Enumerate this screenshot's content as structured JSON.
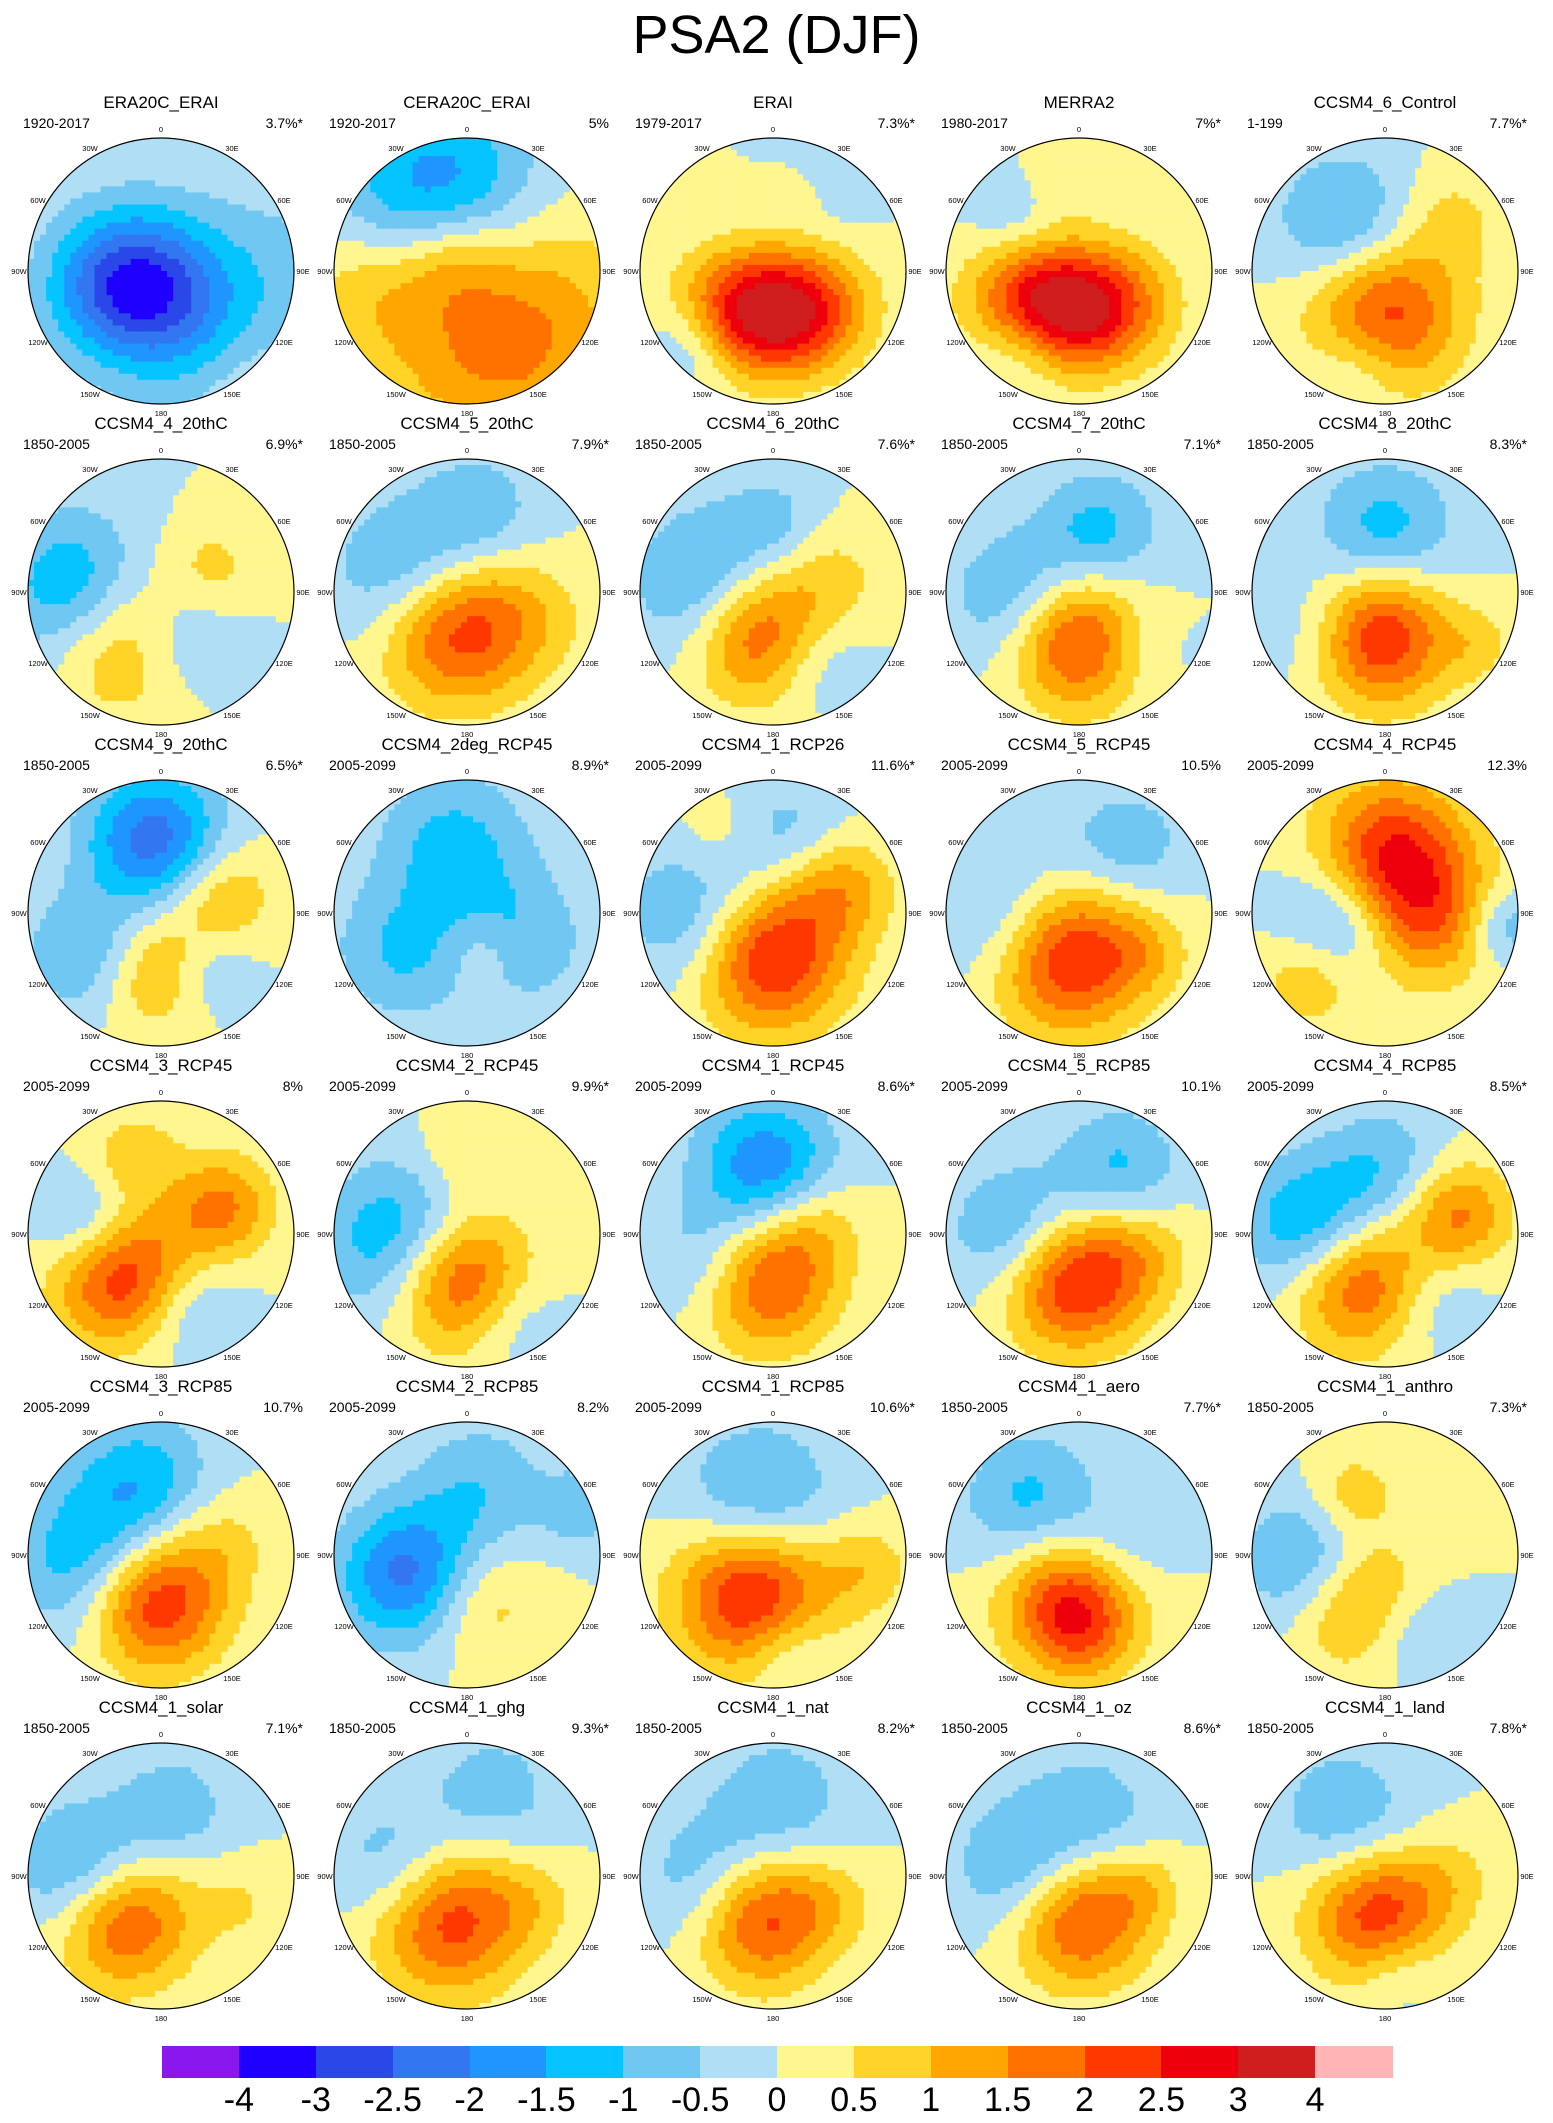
{
  "title": "PSA2 (DJF)",
  "longitude_labels": [
    "0",
    "30E",
    "60E",
    "90E",
    "120E",
    "150E",
    "180",
    "150W",
    "120W",
    "90W",
    "60W",
    "30W"
  ],
  "panels": [
    {
      "name": "ERA20C_ERAI",
      "period": "1920-2017",
      "variance": "3.7%*",
      "pattern": [
        [
          -0.6,
          0.9,
          0.12,
          1.4
        ],
        [
          -2.8,
          -0.25,
          0.12,
          1.0
        ],
        [
          -1.6,
          0.15,
          0.5,
          1.2
        ],
        [
          0.7,
          -0.2,
          0.6,
          0.9
        ],
        [
          0.8,
          0.55,
          0.75,
          1.0
        ]
      ]
    },
    {
      "name": "CERA20C_ERAI",
      "period": "1920-2017",
      "variance": "5%",
      "pattern": [
        [
          -2.1,
          -0.2,
          -0.55,
          1.3
        ],
        [
          1.9,
          0.25,
          0.42,
          1.6
        ],
        [
          0.9,
          -0.1,
          -0.1,
          0.7
        ],
        [
          0.8,
          -0.7,
          0.1,
          0.9
        ]
      ]
    },
    {
      "name": "ERAI",
      "period": "1979-2017",
      "variance": "7.3%*",
      "pattern": [
        [
          2.3,
          0.0,
          0.33,
          0.8
        ],
        [
          1.4,
          -0.35,
          0.28,
          0.8
        ],
        [
          1.4,
          0.35,
          0.28,
          0.8
        ],
        [
          -0.8,
          -0.6,
          0.55,
          0.6
        ],
        [
          -0.6,
          0.4,
          -0.6,
          0.6
        ],
        [
          0.5,
          0.3,
          -0.6,
          0.5
        ]
      ]
    },
    {
      "name": "MERRA2",
      "period": "1980-2017",
      "variance": "7%*",
      "pattern": [
        [
          2.4,
          -0.1,
          0.3,
          0.8
        ],
        [
          1.5,
          -0.45,
          0.2,
          0.8
        ],
        [
          1.5,
          0.3,
          0.25,
          0.8
        ],
        [
          -0.8,
          -0.4,
          0.55,
          0.6
        ],
        [
          0.5,
          -0.1,
          -0.7,
          0.5
        ],
        [
          -0.5,
          -0.5,
          -0.4,
          0.6
        ]
      ]
    },
    {
      "name": "CCSM4_6_Control",
      "period": "1-199",
      "variance": "7.7%*",
      "pattern": [
        [
          2.3,
          0.0,
          0.32,
          1.0
        ],
        [
          -1.3,
          -0.3,
          -0.35,
          0.9
        ],
        [
          -0.7,
          -0.2,
          0.7,
          0.6
        ],
        [
          0.6,
          0.5,
          -0.4,
          0.7
        ]
      ]
    },
    {
      "name": "CCSM4_4_20thC",
      "period": "1850-2005",
      "variance": "6.9%*",
      "pattern": [
        [
          -2.0,
          -0.6,
          0.0,
          1.0
        ],
        [
          2.1,
          -0.25,
          0.3,
          1.0
        ],
        [
          -1.2,
          0.1,
          0.35,
          0.8
        ],
        [
          0.6,
          0.4,
          -0.2,
          0.6
        ]
      ]
    },
    {
      "name": "CCSM4_5_20thC",
      "period": "1850-2005",
      "variance": "7.9%*",
      "pattern": [
        [
          2.7,
          -0.1,
          0.25,
          1.0
        ],
        [
          -1.6,
          -0.4,
          -0.1,
          1.0
        ],
        [
          -0.8,
          0.1,
          -0.6,
          0.8
        ],
        [
          0.5,
          0.5,
          0.2,
          0.8
        ]
      ]
    },
    {
      "name": "CCSM4_6_20thC",
      "period": "1850-2005",
      "variance": "7.6%*",
      "pattern": [
        [
          2.5,
          -0.1,
          0.3,
          0.9
        ],
        [
          -1.5,
          -0.45,
          -0.05,
          1.0
        ],
        [
          -0.8,
          0.3,
          0.5,
          0.7
        ],
        [
          0.6,
          0.45,
          -0.1,
          0.7
        ],
        [
          -0.6,
          0.0,
          -0.55,
          0.6
        ]
      ]
    },
    {
      "name": "CCSM4_7_20thC",
      "period": "1850-2005",
      "variance": "7.1%*",
      "pattern": [
        [
          2.6,
          0.0,
          0.35,
          0.9
        ],
        [
          -1.2,
          -0.45,
          0.05,
          0.9
        ],
        [
          -1.2,
          0.15,
          -0.45,
          0.8
        ],
        [
          -0.6,
          0.4,
          0.4,
          0.7
        ]
      ]
    },
    {
      "name": "CCSM4_8_20thC",
      "period": "1850-2005",
      "variance": "8.3%*",
      "pattern": [
        [
          2.7,
          -0.05,
          0.33,
          0.9
        ],
        [
          -1.3,
          0.0,
          -0.45,
          0.9
        ],
        [
          -0.7,
          -0.5,
          0.3,
          0.8
        ],
        [
          0.6,
          0.7,
          0.4,
          0.5
        ]
      ]
    },
    {
      "name": "CCSM4_9_20thC",
      "period": "1850-2005",
      "variance": "6.5%*",
      "pattern": [
        [
          -2.3,
          -0.05,
          -0.55,
          0.9
        ],
        [
          1.3,
          -0.05,
          0.42,
          0.8
        ],
        [
          -1.2,
          -0.55,
          0.3,
          0.8
        ],
        [
          1.1,
          0.45,
          -0.15,
          0.7
        ],
        [
          -0.7,
          0.35,
          0.45,
          0.6
        ]
      ]
    },
    {
      "name": "CCSM4_2deg_RCP45",
      "period": "2005-2099",
      "variance": "8.9%*",
      "pattern": [
        [
          -1.2,
          -0.1,
          -0.5,
          1.0
        ],
        [
          -1.0,
          -0.5,
          0.3,
          0.9
        ],
        [
          -0.9,
          0.4,
          0.2,
          0.9
        ],
        [
          0.6,
          0.1,
          0.3,
          0.5
        ]
      ]
    },
    {
      "name": "CCSM4_1_RCP26",
      "period": "2005-2099",
      "variance": "11.6%*",
      "pattern": [
        [
          3.0,
          -0.05,
          0.3,
          1.0
        ],
        [
          -1.5,
          -0.5,
          0.05,
          1.0
        ],
        [
          1.2,
          0.5,
          -0.2,
          0.7
        ],
        [
          -0.8,
          0.1,
          -0.55,
          0.8
        ],
        [
          0.5,
          -0.4,
          -0.6,
          0.6
        ]
      ]
    },
    {
      "name": "CCSM4_5_RCP45",
      "period": "2005-2099",
      "variance": "10.5%",
      "pattern": [
        [
          3.0,
          -0.1,
          0.3,
          1.0
        ],
        [
          -1.3,
          -0.45,
          0.05,
          1.0
        ],
        [
          -0.9,
          0.35,
          -0.5,
          0.8
        ],
        [
          0.6,
          0.5,
          0.3,
          0.6
        ]
      ]
    },
    {
      "name": "CCSM4_4_RCP45",
      "period": "2005-2099",
      "variance": "12.3%",
      "pattern": [
        [
          2.4,
          0.05,
          -0.45,
          1.0
        ],
        [
          1.6,
          0.3,
          0.05,
          0.9
        ],
        [
          -1.6,
          -0.35,
          0.1,
          0.8
        ],
        [
          1.2,
          -0.55,
          0.45,
          0.7
        ],
        [
          -1.0,
          0.9,
          0.1,
          0.5
        ]
      ]
    },
    {
      "name": "CCSM4_3_RCP45",
      "period": "2005-2099",
      "variance": "8%",
      "pattern": [
        [
          2.6,
          -0.3,
          0.3,
          0.9
        ],
        [
          1.6,
          0.45,
          -0.2,
          0.7
        ],
        [
          -1.2,
          -0.55,
          -0.05,
          0.7
        ],
        [
          0.8,
          -0.2,
          -0.6,
          0.6
        ],
        [
          -0.8,
          0.2,
          0.55,
          0.7
        ]
      ]
    },
    {
      "name": "CCSM4_2_RCP45",
      "period": "2005-2099",
      "variance": "9.9%*",
      "pattern": [
        [
          2.6,
          -0.05,
          0.35,
          0.9
        ],
        [
          -1.7,
          -0.5,
          0.05,
          1.0
        ],
        [
          -0.8,
          0.3,
          0.6,
          0.7
        ],
        [
          0.6,
          0.0,
          -0.6,
          0.6
        ]
      ]
    },
    {
      "name": "CCSM4_1_RCP45",
      "period": "2005-2099",
      "variance": "8.6%*",
      "pattern": [
        [
          2.2,
          -0.05,
          0.35,
          0.9
        ],
        [
          -2.0,
          -0.05,
          -0.5,
          0.9
        ],
        [
          -0.9,
          -0.5,
          0.2,
          0.8
        ],
        [
          0.8,
          0.3,
          -0.1,
          0.7
        ]
      ]
    },
    {
      "name": "CCSM4_5_RCP85",
      "period": "2005-2099",
      "variance": "10.1%",
      "pattern": [
        [
          2.7,
          -0.05,
          0.35,
          0.9
        ],
        [
          -1.3,
          -0.45,
          0.0,
          0.9
        ],
        [
          -1.1,
          0.3,
          -0.5,
          0.8
        ],
        [
          0.8,
          0.45,
          0.15,
          0.7
        ]
      ]
    },
    {
      "name": "CCSM4_4_RCP85",
      "period": "2005-2099",
      "variance": "8.5%*",
      "pattern": [
        [
          2.3,
          -0.2,
          0.35,
          0.9
        ],
        [
          -1.8,
          -0.55,
          -0.05,
          0.9
        ],
        [
          1.6,
          0.55,
          -0.15,
          0.7
        ],
        [
          -0.9,
          0.0,
          -0.5,
          0.8
        ],
        [
          -0.6,
          0.35,
          0.5,
          0.7
        ]
      ]
    },
    {
      "name": "CCSM4_3_RCP85",
      "period": "2005-2099",
      "variance": "10.7%",
      "pattern": [
        [
          2.7,
          -0.05,
          0.35,
          0.9
        ],
        [
          -1.5,
          -0.55,
          0.05,
          1.0
        ],
        [
          -1.3,
          -0.15,
          -0.55,
          0.9
        ],
        [
          0.6,
          0.45,
          -0.1,
          0.7
        ]
      ]
    },
    {
      "name": "CCSM4_2_RCP85",
      "period": "2005-2099",
      "variance": "8.2%",
      "pattern": [
        [
          -2.2,
          -0.45,
          0.15,
          0.9
        ],
        [
          -0.9,
          0.1,
          -0.5,
          0.9
        ],
        [
          0.9,
          0.1,
          0.35,
          0.8
        ],
        [
          -0.9,
          0.85,
          -0.35,
          0.5
        ]
      ]
    },
    {
      "name": "CCSM4_1_RCP85",
      "period": "2005-2099",
      "variance": "10.6%*",
      "pattern": [
        [
          2.8,
          -0.15,
          0.3,
          1.0
        ],
        [
          -1.3,
          -0.1,
          -0.4,
          1.0
        ],
        [
          0.8,
          0.7,
          0.1,
          0.6
        ],
        [
          -0.8,
          0.1,
          0.7,
          0.6
        ]
      ]
    },
    {
      "name": "CCSM4_1_aero",
      "period": "1850-2005",
      "variance": "7.7%*",
      "pattern": [
        [
          2.5,
          -0.05,
          0.35,
          0.9
        ],
        [
          -1.2,
          -0.35,
          -0.4,
          0.9
        ],
        [
          -0.7,
          0.3,
          0.0,
          0.7
        ],
        [
          0.6,
          0.0,
          0.6,
          0.6
        ]
      ]
    },
    {
      "name": "CCSM4_1_anthro",
      "period": "1850-2005",
      "variance": "7.3%*",
      "pattern": [
        [
          2.3,
          -0.25,
          0.3,
          0.9
        ],
        [
          -2.0,
          -0.5,
          0.1,
          0.9
        ],
        [
          0.9,
          -0.25,
          -0.45,
          0.6
        ],
        [
          -0.8,
          0.2,
          0.55,
          0.7
        ]
      ]
    },
    {
      "name": "CCSM4_1_solar",
      "period": "1850-2005",
      "variance": "7.1%*",
      "pattern": [
        [
          2.6,
          -0.3,
          0.3,
          0.9
        ],
        [
          -1.8,
          -0.55,
          0.0,
          0.9
        ],
        [
          -0.8,
          0.1,
          -0.5,
          0.8
        ],
        [
          0.5,
          0.6,
          0.2,
          0.6
        ]
      ]
    },
    {
      "name": "CCSM4_1_ghg",
      "period": "1850-2005",
      "variance": "9.3%*",
      "pattern": [
        [
          2.5,
          -0.15,
          0.3,
          1.0
        ],
        [
          -1.2,
          -0.5,
          -0.05,
          0.9
        ],
        [
          -0.8,
          0.2,
          -0.6,
          0.9
        ],
        [
          0.5,
          0.5,
          0.2,
          0.6
        ]
      ]
    },
    {
      "name": "CCSM4_1_nat",
      "period": "1850-2005",
      "variance": "8.2%*",
      "pattern": [
        [
          2.5,
          -0.1,
          0.3,
          0.9
        ],
        [
          -1.2,
          -0.45,
          0.05,
          0.9
        ],
        [
          -0.9,
          0.05,
          -0.55,
          0.9
        ],
        [
          0.5,
          0.45,
          0.2,
          0.6
        ]
      ]
    },
    {
      "name": "CCSM4_1_oz",
      "period": "1850-2005",
      "variance": "8.6%*",
      "pattern": [
        [
          2.4,
          0.0,
          0.3,
          0.9
        ],
        [
          -1.3,
          -0.4,
          -0.05,
          0.9
        ],
        [
          -0.8,
          0.1,
          -0.45,
          0.9
        ],
        [
          0.6,
          0.5,
          0.1,
          0.5
        ]
      ]
    },
    {
      "name": "CCSM4_1_land",
      "period": "1850-2005",
      "variance": "7.8%*",
      "pattern": [
        [
          2.4,
          -0.05,
          0.3,
          0.9
        ],
        [
          -1.0,
          -0.3,
          -0.45,
          0.9
        ],
        [
          0.5,
          0.5,
          0.0,
          0.6
        ],
        [
          -0.7,
          0.1,
          0.7,
          0.6
        ]
      ]
    }
  ],
  "colorbar": {
    "colors": [
      "#8a17eb",
      "#1f00ff",
      "#2a47e7",
      "#3276f0",
      "#1f96ff",
      "#05c4ff",
      "#6fc7f2",
      "#b0dff5",
      "#fff68f",
      "#ffd327",
      "#ffa700",
      "#ff7200",
      "#ff3800",
      "#ed000c",
      "#d01d1d",
      "#ffb5b5"
    ],
    "labels": [
      "-4",
      "-3",
      "-2.5",
      "-2",
      "-1.5",
      "-1",
      "-0.5",
      "0",
      "0.5",
      "1",
      "1.5",
      "2",
      "2.5",
      "3",
      "4"
    ],
    "levels": [
      -4,
      -3,
      -2.5,
      -2,
      -1.5,
      -1,
      -0.5,
      0,
      0.5,
      1,
      1.5,
      2,
      2.5,
      3,
      4
    ]
  }
}
